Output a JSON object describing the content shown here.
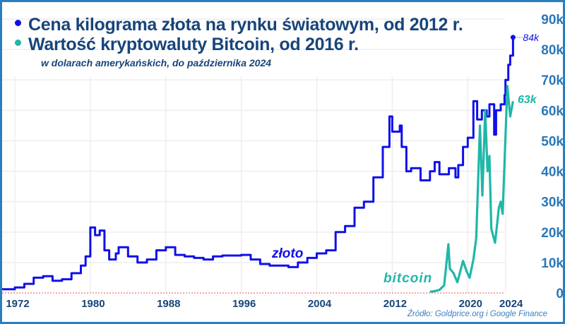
{
  "chart_data": {
    "type": "line",
    "title_lines": [
      "Cena kilograma złota na rynku światowym, od 2012 r.",
      "Wartość kryptowaluty Bitcoin, od 2016 r."
    ],
    "subtitle": "w dolarach amerykańskich, do października 2024",
    "source": "Źródło: Goldprice.org i Google Finance",
    "xlabel": "",
    "ylabel": "",
    "x_ticks": [
      1972,
      1980,
      1988,
      1996,
      2004,
      2012,
      2020,
      2024
    ],
    "y_ticks": [
      0,
      10000,
      20000,
      30000,
      40000,
      50000,
      60000,
      70000,
      80000,
      90000
    ],
    "y_tick_labels": [
      "0",
      "10k",
      "20k",
      "30k",
      "40k",
      "50k",
      "60k",
      "70k",
      "80k",
      "90k"
    ],
    "ylim": [
      0,
      90000
    ],
    "xlim": [
      1970.5,
      2025
    ],
    "grid": true,
    "legend": "top-left",
    "series": [
      {
        "name": "złoto",
        "color": "#1010e8",
        "end_label": "84k",
        "x": [
          1970.5,
          1972,
          1973,
          1974,
          1975,
          1976,
          1977,
          1978,
          1979,
          1979.5,
          1980,
          1980.5,
          1981,
          1981.5,
          1982,
          1982.7,
          1983,
          1984,
          1985,
          1986,
          1987,
          1988,
          1989,
          1990,
          1991,
          1992,
          1993,
          1994,
          1995,
          1996,
          1997,
          1998,
          1999,
          2000,
          2001,
          2002,
          2003,
          2004,
          2005,
          2006,
          2007,
          2008,
          2009,
          2010,
          2011,
          2011.7,
          2012,
          2012.8,
          2013,
          2013.5,
          2014,
          2015,
          2016,
          2016.5,
          2017,
          2018,
          2018.7,
          2019,
          2019.5,
          2020,
          2020.6,
          2021,
          2021.5,
          2022,
          2022.3,
          2022.8,
          2023,
          2023.5,
          2023.9,
          2024,
          2024.3,
          2024.5,
          2024.8
        ],
        "y": [
          1200,
          1800,
          3000,
          5000,
          5500,
          4000,
          4500,
          6500,
          9000,
          12000,
          21500,
          19000,
          20500,
          14000,
          11000,
          13000,
          15000,
          12000,
          10000,
          11000,
          14000,
          15000,
          12500,
          12000,
          11500,
          11000,
          12000,
          12300,
          12300,
          12500,
          11000,
          9500,
          9000,
          9000,
          8500,
          10000,
          11500,
          13000,
          14000,
          20000,
          22000,
          28000,
          30000,
          38000,
          48000,
          58000,
          53000,
          55000,
          48000,
          40000,
          41000,
          37000,
          40000,
          43000,
          39000,
          41000,
          38000,
          42000,
          48000,
          51000,
          63000,
          57000,
          60000,
          58000,
          62000,
          52000,
          60000,
          62000,
          65000,
          70000,
          75000,
          78000,
          84000
        ]
      },
      {
        "name": "bitcoin",
        "color": "#1fb7a8",
        "end_label": "63k",
        "x": [
          2016,
          2016.5,
          2017,
          2017.5,
          2017.95,
          2018.1,
          2018.5,
          2018.9,
          2019.5,
          2019.9,
          2020.2,
          2020.6,
          2020.9,
          2021.3,
          2021.55,
          2021.85,
          2022.1,
          2022.3,
          2022.5,
          2022.9,
          2023.3,
          2023.5,
          2023.7,
          2024.2,
          2024.5,
          2024.8
        ],
        "y": [
          400,
          600,
          1000,
          2500,
          16000,
          8000,
          6500,
          3500,
          10500,
          7000,
          5000,
          11000,
          18000,
          55000,
          32000,
          60000,
          40000,
          45000,
          21000,
          16500,
          28000,
          30000,
          26000,
          68000,
          58000,
          63000
        ]
      }
    ]
  }
}
